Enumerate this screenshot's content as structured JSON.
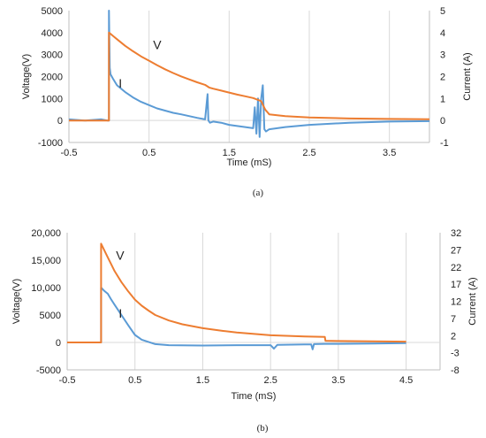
{
  "chart_data": [
    {
      "type": "line",
      "panel_label": "(a)",
      "xlabel": "Time (mS)",
      "ylabel": "Voltage(V)",
      "y2label": "Current (A)",
      "xlim": [
        -0.5,
        4.0
      ],
      "ylim": [
        -1000,
        5000
      ],
      "y2lim": [
        -1,
        5
      ],
      "x_ticks": [
        -0.5,
        0.5,
        1.5,
        2.5,
        3.5
      ],
      "x_tick_labels": [
        "-0.5",
        "0.5",
        "1.5",
        "2.5",
        "3.5"
      ],
      "y_ticks": [
        -1000,
        0,
        1000,
        2000,
        3000,
        4000,
        5000
      ],
      "y_tick_labels": [
        "-1000",
        "0",
        "1000",
        "2000",
        "3000",
        "4000",
        "5000"
      ],
      "y2_ticks": [
        -1,
        0,
        1,
        2,
        3,
        4,
        5
      ],
      "y2_tick_labels": [
        "-1",
        "0",
        "1",
        "2",
        "3",
        "4",
        "5"
      ],
      "grid": "vertical",
      "series": [
        {
          "name": "V",
          "axis": "left",
          "color": "#ED7D31",
          "x": [
            -0.5,
            0.0,
            0.0,
            0.05,
            0.1,
            0.2,
            0.3,
            0.4,
            0.5,
            0.6,
            0.7,
            0.8,
            0.9,
            1.0,
            1.1,
            1.2,
            1.25,
            1.3,
            1.4,
            1.5,
            1.6,
            1.7,
            1.75,
            1.8,
            1.85,
            1.9,
            1.95,
            2.0,
            2.2,
            2.5,
            3.0,
            3.5,
            4.0
          ],
          "y": [
            0,
            0,
            4000,
            3850,
            3700,
            3400,
            3150,
            2920,
            2720,
            2520,
            2330,
            2160,
            2010,
            1870,
            1740,
            1620,
            1500,
            1450,
            1360,
            1270,
            1180,
            1100,
            1060,
            1020,
            950,
            880,
            500,
            280,
            200,
            140,
            90,
            70,
            60
          ]
        },
        {
          "name": "I",
          "axis": "right",
          "color": "#5B9BD5",
          "x": [
            -0.5,
            -0.3,
            -0.1,
            -0.02,
            0.0,
            0.0,
            0.01,
            0.02,
            0.05,
            0.1,
            0.2,
            0.3,
            0.4,
            0.5,
            0.6,
            0.7,
            0.8,
            0.9,
            1.0,
            1.1,
            1.2,
            1.23,
            1.24,
            1.26,
            1.3,
            1.4,
            1.5,
            1.6,
            1.7,
            1.8,
            1.82,
            1.84,
            1.86,
            1.88,
            1.9,
            1.92,
            1.94,
            1.96,
            2.0,
            2.2,
            2.5,
            3.0,
            3.5,
            4.0
          ],
          "y": [
            0.05,
            0.0,
            0.05,
            0.0,
            0.0,
            5.0,
            2.4,
            2.1,
            1.9,
            1.6,
            1.3,
            1.05,
            0.85,
            0.7,
            0.55,
            0.45,
            0.35,
            0.28,
            0.2,
            0.12,
            0.05,
            1.2,
            0.0,
            -0.1,
            -0.05,
            -0.1,
            -0.2,
            -0.25,
            -0.3,
            -0.35,
            0.6,
            -0.6,
            1.0,
            -0.75,
            1.0,
            1.6,
            -0.4,
            -0.5,
            -0.4,
            -0.3,
            -0.2,
            -0.1,
            -0.05,
            -0.03
          ]
        }
      ],
      "annotations": [
        {
          "text": "V",
          "x": 0.55,
          "y": 3450,
          "axis": "left"
        },
        {
          "text": "I",
          "x": 0.12,
          "y": 1.7,
          "axis": "right"
        }
      ]
    },
    {
      "type": "line",
      "panel_label": "(b)",
      "xlabel": "Time (mS)",
      "ylabel": "Voltage(V)",
      "y2label": "Current (A)",
      "xlim": [
        -0.5,
        5.0
      ],
      "ylim": [
        -5000,
        20000
      ],
      "y2lim": [
        -8,
        32
      ],
      "x_ticks": [
        -0.5,
        0.5,
        1.5,
        2.5,
        3.5,
        4.5
      ],
      "x_tick_labels": [
        "-0.5",
        "0.5",
        "1.5",
        "2.5",
        "3.5",
        "4.5"
      ],
      "y_ticks": [
        -5000,
        0,
        5000,
        10000,
        15000,
        20000
      ],
      "y_tick_labels": [
        "-5000",
        "0",
        "5000",
        "10,000",
        "15,000",
        "20,000"
      ],
      "y2_ticks": [
        -8,
        -3,
        2,
        7,
        12,
        17,
        22,
        27,
        32
      ],
      "y2_tick_labels": [
        "-8",
        "-3",
        "2",
        "7",
        "12",
        "17",
        "22",
        "27",
        "32"
      ],
      "grid": "vertical",
      "series": [
        {
          "name": "V",
          "axis": "left",
          "color": "#ED7D31",
          "x": [
            -0.5,
            0.0,
            0.0,
            0.1,
            0.2,
            0.3,
            0.4,
            0.5,
            0.6,
            0.7,
            0.8,
            1.0,
            1.2,
            1.5,
            1.8,
            2.0,
            2.5,
            3.0,
            3.3,
            3.31,
            3.5,
            4.0,
            4.5
          ],
          "y": [
            0,
            0,
            18000,
            15500,
            13000,
            11000,
            9300,
            7800,
            6700,
            5800,
            5000,
            4000,
            3300,
            2600,
            2100,
            1800,
            1300,
            1100,
            1000,
            300,
            250,
            200,
            150
          ]
        },
        {
          "name": "I",
          "axis": "right",
          "color": "#5B9BD5",
          "x": [
            -0.5,
            0.0,
            0.0,
            0.05,
            0.1,
            0.15,
            0.2,
            0.3,
            0.4,
            0.5,
            0.6,
            0.8,
            1.0,
            1.5,
            2.0,
            2.5,
            2.55,
            2.6,
            3.0,
            3.1,
            3.12,
            3.14,
            3.3,
            3.5,
            4.0,
            4.5
          ],
          "y": [
            0.0,
            0.0,
            16.0,
            15.0,
            14.2,
            12.5,
            11.0,
            8.0,
            5.0,
            2.2,
            0.8,
            -0.5,
            -0.8,
            -0.9,
            -0.8,
            -0.8,
            -1.8,
            -0.7,
            -0.6,
            -0.6,
            -2.0,
            -0.5,
            -0.4,
            -0.4,
            -0.3,
            -0.2
          ]
        }
      ],
      "annotations": [
        {
          "text": "V",
          "x": 0.22,
          "y": 15900,
          "axis": "left"
        },
        {
          "text": "I",
          "x": 0.26,
          "y": 8.5,
          "axis": "right"
        }
      ]
    }
  ]
}
